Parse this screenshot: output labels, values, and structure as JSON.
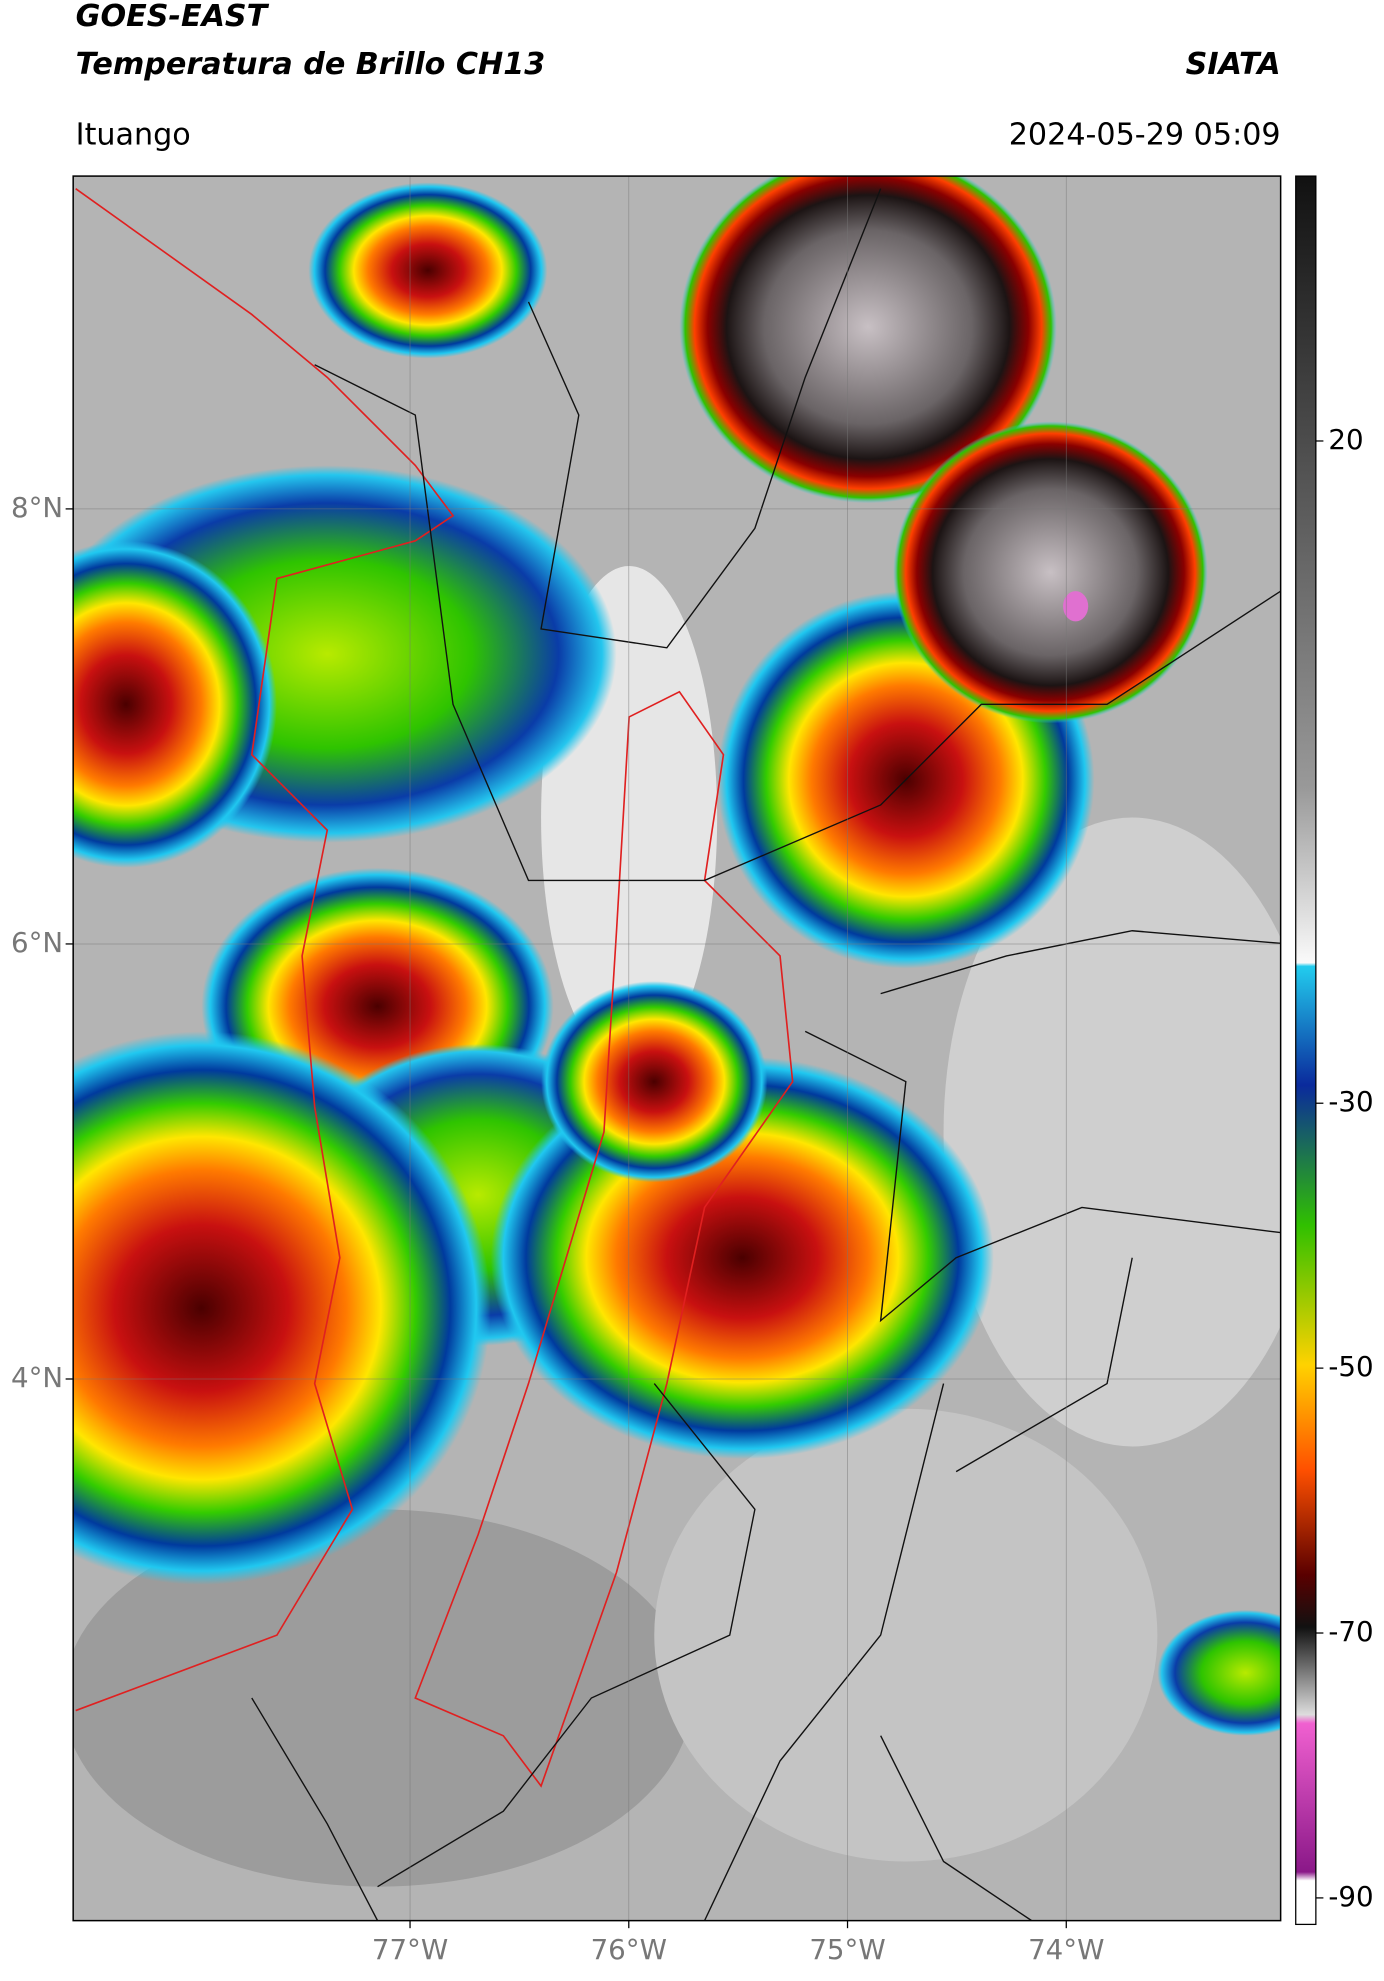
{
  "header": {
    "title": "GOES-EAST",
    "subtitle": "Temperatura de Brillo CH13",
    "org": "SIATA",
    "location": "Ituango",
    "datetime": "2024-05-29 05:09"
  },
  "map": {
    "xlim": [
      -78.54,
      -73.02
    ],
    "ylim": [
      1.51,
      9.53
    ],
    "xticks": [
      {
        "value": -77,
        "label": "77°W"
      },
      {
        "value": -76,
        "label": "76°W"
      },
      {
        "value": -75,
        "label": "75°W"
      },
      {
        "value": -74,
        "label": "74°W"
      }
    ],
    "yticks": [
      {
        "value": 8,
        "label": "8°N"
      },
      {
        "value": 6,
        "label": "6°N"
      },
      {
        "value": 4,
        "label": "4°N"
      }
    ]
  },
  "colorbar": {
    "lim": [
      -92,
      40
    ],
    "ticks": [
      20,
      -30,
      -50,
      -70,
      -90
    ]
  }
}
